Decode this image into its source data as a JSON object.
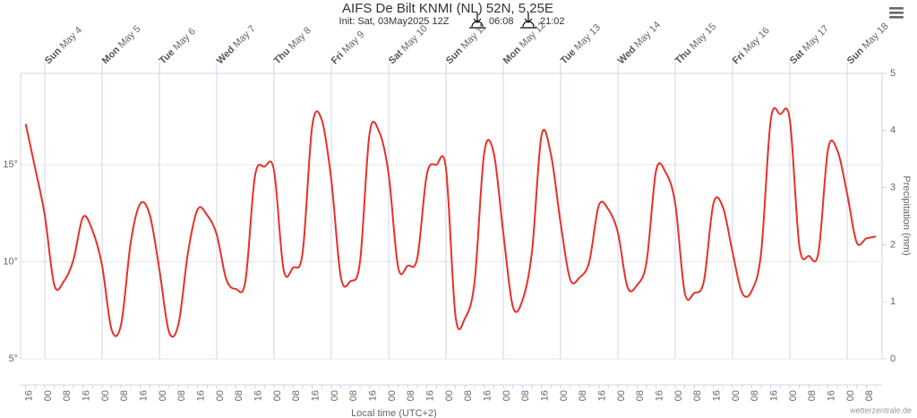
{
  "chart_data": {
    "type": "line",
    "title": "AIFS De Bilt KNMI (NL) 52N, 5.25E",
    "subtitle": "Init: Sat, 03May2025 12Z",
    "sunrise": "06:08",
    "sunset": "21:02",
    "day_weekdays": [
      "Sun",
      "Mon",
      "Tue",
      "Wed",
      "Thu",
      "Fri",
      "Sat",
      "Sun",
      "Mon",
      "Tue",
      "Wed",
      "Thu",
      "Fri",
      "Sat",
      "Sun"
    ],
    "day_dates": [
      "May 4",
      "May 5",
      "May 6",
      "May 7",
      "May 8",
      "May 9",
      "May 10",
      "May 11",
      "May 12",
      "May 13",
      "May 14",
      "May 15",
      "May 16",
      "May 17",
      "May 18"
    ],
    "categories": [
      "16",
      null,
      "00",
      null,
      "08",
      null,
      "16",
      null,
      "00",
      null,
      "08",
      null,
      "16",
      null,
      "00",
      null,
      "08",
      null,
      "16",
      null,
      "00",
      null,
      "08",
      null,
      "16",
      null,
      "00",
      null,
      "08",
      null,
      "16",
      null,
      "00",
      null,
      "08",
      null,
      "16",
      null,
      "00",
      null,
      "08",
      null,
      "16",
      null,
      "00",
      null,
      "08",
      null,
      "16",
      null,
      "00",
      null,
      "08",
      null,
      "16",
      null,
      "00",
      null,
      "08",
      null,
      "16",
      null,
      "00",
      null,
      "08",
      null,
      "16",
      null,
      "00",
      null,
      "08",
      null,
      "16",
      null,
      "00",
      null,
      "08",
      null,
      "16",
      null,
      "00",
      null,
      "08",
      null,
      "16",
      null,
      "00",
      null,
      "08",
      null
    ],
    "series": [
      {
        "color": "#e8302a",
        "values": [
          17.1,
          14.8,
          12.4,
          8.8,
          9.0,
          10.1,
          12.3,
          11.6,
          9.8,
          6.5,
          6.8,
          11.0,
          13.0,
          12.4,
          9.6,
          6.4,
          6.8,
          10.5,
          12.7,
          12.4,
          11.4,
          9.1,
          8.6,
          9.0,
          14.4,
          14.9,
          14.7,
          9.6,
          9.7,
          10.5,
          17.0,
          17.3,
          14.2,
          9.2,
          9.0,
          10.0,
          16.6,
          16.7,
          14.5,
          9.7,
          9.8,
          10.2,
          14.5,
          15.0,
          14.8,
          7.2,
          7.1,
          9.0,
          15.6,
          15.6,
          11.5,
          7.7,
          8.0,
          10.5,
          16.5,
          15.5,
          12.0,
          9.1,
          9.2,
          10.0,
          12.9,
          12.7,
          11.5,
          8.7,
          8.8,
          10.0,
          14.7,
          14.6,
          13.0,
          8.4,
          8.4,
          9.0,
          13.0,
          12.8,
          10.5,
          8.4,
          8.5,
          10.5,
          17.3,
          17.6,
          17.3,
          10.8,
          10.3,
          10.5,
          15.8,
          15.7,
          13.5,
          11.0,
          11.2,
          11.3
        ]
      }
    ],
    "ylim": [
      5,
      19.7
    ],
    "yticks": [
      {
        "value": 5,
        "label": "5°"
      },
      {
        "value": 10,
        "label": "10°"
      },
      {
        "value": 15,
        "label": "15°"
      }
    ],
    "y2lim": [
      0,
      5
    ],
    "y2ticks": [
      0,
      1,
      2,
      3,
      4,
      5
    ],
    "y2label": "Precipitation (mm)",
    "xlabel": "Local time (UTC+2)",
    "credit": "wetterzentrale.de",
    "grid": true
  }
}
